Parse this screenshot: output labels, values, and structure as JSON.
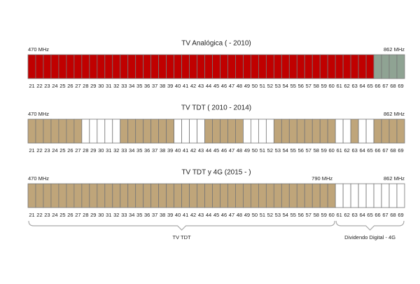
{
  "channels": [
    21,
    22,
    23,
    24,
    25,
    26,
    27,
    28,
    29,
    30,
    31,
    32,
    33,
    34,
    35,
    36,
    37,
    38,
    39,
    40,
    41,
    42,
    43,
    44,
    45,
    46,
    47,
    48,
    49,
    50,
    51,
    52,
    53,
    54,
    55,
    56,
    57,
    58,
    59,
    60,
    61,
    62,
    63,
    64,
    65,
    66,
    67,
    68,
    69
  ],
  "rows": [
    {
      "title": "TV Analógica ( - 2010)",
      "freq_start": "470 MHz",
      "freq_end": "862 MHz",
      "spans": [
        {
          "first": 21,
          "last": 65,
          "color": "#c00000"
        },
        {
          "first": 66,
          "last": 69,
          "color": "#8fa393"
        }
      ]
    },
    {
      "title": "TV TDT ( 2010 - 2014)",
      "freq_start": "470 MHz",
      "freq_end": "862 MHz",
      "spans": [
        {
          "first": 21,
          "last": 27,
          "color": "#bfa57a"
        },
        {
          "first": 28,
          "last": 32,
          "color": "#ffffff"
        },
        {
          "first": 33,
          "last": 39,
          "color": "#bfa57a"
        },
        {
          "first": 40,
          "last": 43,
          "color": "#ffffff"
        },
        {
          "first": 44,
          "last": 48,
          "color": "#bfa57a"
        },
        {
          "first": 49,
          "last": 52,
          "color": "#ffffff"
        },
        {
          "first": 53,
          "last": 60,
          "color": "#bfa57a"
        },
        {
          "first": 61,
          "last": 62,
          "color": "#ffffff"
        },
        {
          "first": 63,
          "last": 63,
          "color": "#bfa57a"
        },
        {
          "first": 64,
          "last": 65,
          "color": "#ffffff"
        },
        {
          "first": 66,
          "last": 69,
          "color": "#bfa57a"
        }
      ]
    },
    {
      "title": "TV TDT y 4G (2015 - )",
      "freq_start": "470 MHz",
      "freq_mid": "790 MHz",
      "freq_end": "862 MHz",
      "spans": [
        {
          "first": 21,
          "last": 60,
          "color": "#bfa57a"
        },
        {
          "first": 61,
          "last": 69,
          "color": "#ffffff"
        }
      ],
      "groups": [
        {
          "label": "TV TDT",
          "first": 21,
          "last": 60
        },
        {
          "label": "Dividendo Digital - 4G",
          "first": 61,
          "last": 69
        }
      ]
    }
  ]
}
